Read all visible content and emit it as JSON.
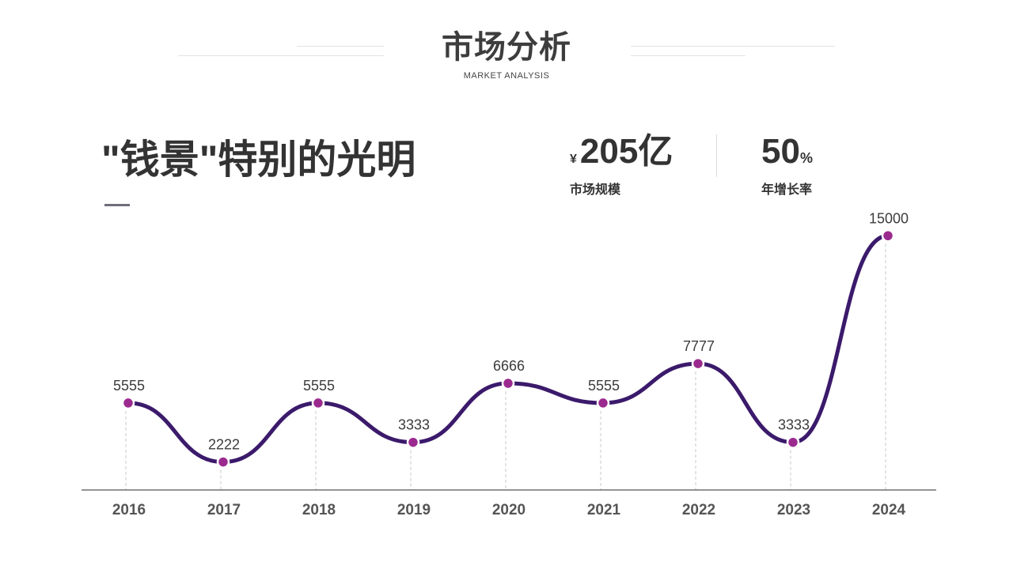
{
  "header": {
    "title": "市场分析",
    "subtitle": "MARKET ANALYSIS"
  },
  "headline": {
    "text": "\"钱景\"特别的光明"
  },
  "stats": [
    {
      "prefix": "¥",
      "number": "205",
      "suffix": "亿",
      "label": "市场规模"
    },
    {
      "prefix": "",
      "number": "50",
      "suffix": "%",
      "label": "年增长率"
    }
  ],
  "colors": {
    "line": "#3b1a6b",
    "marker": "#9b2a8f",
    "axis": "#555555",
    "guide": "#c8c8c8",
    "text": "#3c3c3c"
  },
  "chart_data": {
    "type": "line",
    "smooth": true,
    "title": "",
    "xlabel": "",
    "ylabel": "",
    "categories": [
      "2016",
      "2017",
      "2018",
      "2019",
      "2020",
      "2021",
      "2022",
      "2023",
      "2024"
    ],
    "series": [
      {
        "values": [
          5555,
          2222,
          5555,
          3333,
          6666,
          5555,
          7777,
          3333,
          15000
        ],
        "labels": [
          "5555",
          "2222",
          "5555",
          "3333",
          "6666",
          "5555",
          "7777",
          "3333",
          "15000"
        ]
      }
    ],
    "grid": false,
    "legend": "none"
  }
}
